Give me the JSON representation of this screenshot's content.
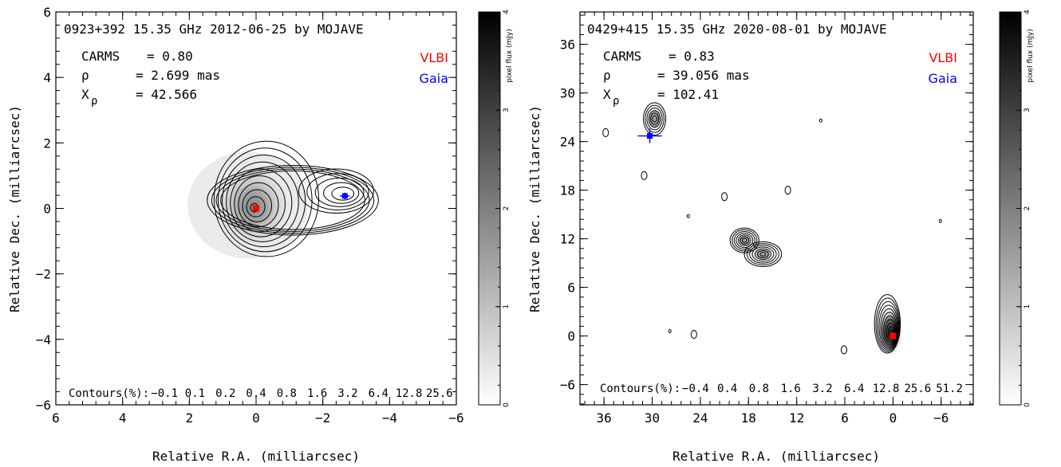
{
  "chart_data": [
    {
      "type": "contour",
      "title": "0923+392 15.35 GHz 2012-06-25 by MOJAVE",
      "stats": [
        {
          "name": "CARMS",
          "sym": "",
          "value": "0.80"
        },
        {
          "name": "ρ",
          "sym": "rho",
          "value": "2.699 mas"
        },
        {
          "name": "X",
          "sym": "chi",
          "sub": "ρ",
          "value": "42.566"
        }
      ],
      "legend": [
        {
          "label": "VLBI",
          "color": "#ff0000"
        },
        {
          "label": "Gaia",
          "color": "#0000ff"
        }
      ],
      "xlabel": "Relative R.A. (milliarcsec)",
      "ylabel": "Relative Dec. (milliarcsec)",
      "xlim": [
        6,
        -6
      ],
      "ylim": [
        -6,
        6
      ],
      "xticks": [
        6,
        4,
        2,
        0,
        -2,
        -4,
        -6
      ],
      "yticks": [
        6,
        4,
        2,
        0,
        -2,
        -4,
        -6
      ],
      "contour_label": "Contours(%):",
      "contour_levels": [
        "-0.1",
        "0.1",
        "0.2",
        "0.4",
        "0.8",
        "1.6",
        "3.2",
        "6.4",
        "12.8",
        "25.6"
      ],
      "vlbi": {
        "x": 0,
        "y": 0
      },
      "gaia": {
        "x": -2.66,
        "y": 0.38,
        "xerr": 0.15,
        "yerr": 0.1
      },
      "colorbar": {
        "label": "pixel flux (mJy)",
        "ticks": [
          0,
          1,
          2,
          3,
          4
        ],
        "range": [
          0,
          4
        ]
      }
    },
    {
      "type": "contour",
      "title": "0429+415 15.35 GHz 2020-08-01 by MOJAVE",
      "stats": [
        {
          "name": "CARMS",
          "sym": "",
          "value": "0.83"
        },
        {
          "name": "ρ",
          "sym": "rho",
          "value": "39.056 mas"
        },
        {
          "name": "X",
          "sym": "chi",
          "sub": "ρ",
          "value": "102.41"
        }
      ],
      "legend": [
        {
          "label": "VLBI",
          "color": "#ff0000"
        },
        {
          "label": "Gaia",
          "color": "#0000ff"
        }
      ],
      "xlabel": "Relative R.A. (milliarcsec)",
      "ylabel": "Relative Dec. (milliarcsec)",
      "xlim": [
        39,
        -10
      ],
      "ylim": [
        -8.5,
        40
      ],
      "xticks": [
        36,
        30,
        24,
        18,
        12,
        6,
        0,
        -6
      ],
      "yticks": [
        36,
        30,
        24,
        18,
        12,
        6,
        0,
        -6
      ],
      "contour_label": "Contours(%):",
      "contour_levels": [
        "-0.4",
        "0.4",
        "0.8",
        "1.6",
        "3.2",
        "6.4",
        "12.8",
        "25.6",
        "51.2"
      ],
      "vlbi": {
        "x": 0,
        "y": 0
      },
      "gaia": {
        "x": 30.3,
        "y": 24.7,
        "xerr": 1.5,
        "yerr": 0.9
      },
      "colorbar": {
        "label": "pixel flux (mJy)",
        "ticks": [
          0,
          1,
          2,
          3,
          4
        ],
        "range": [
          0,
          4
        ]
      }
    }
  ]
}
